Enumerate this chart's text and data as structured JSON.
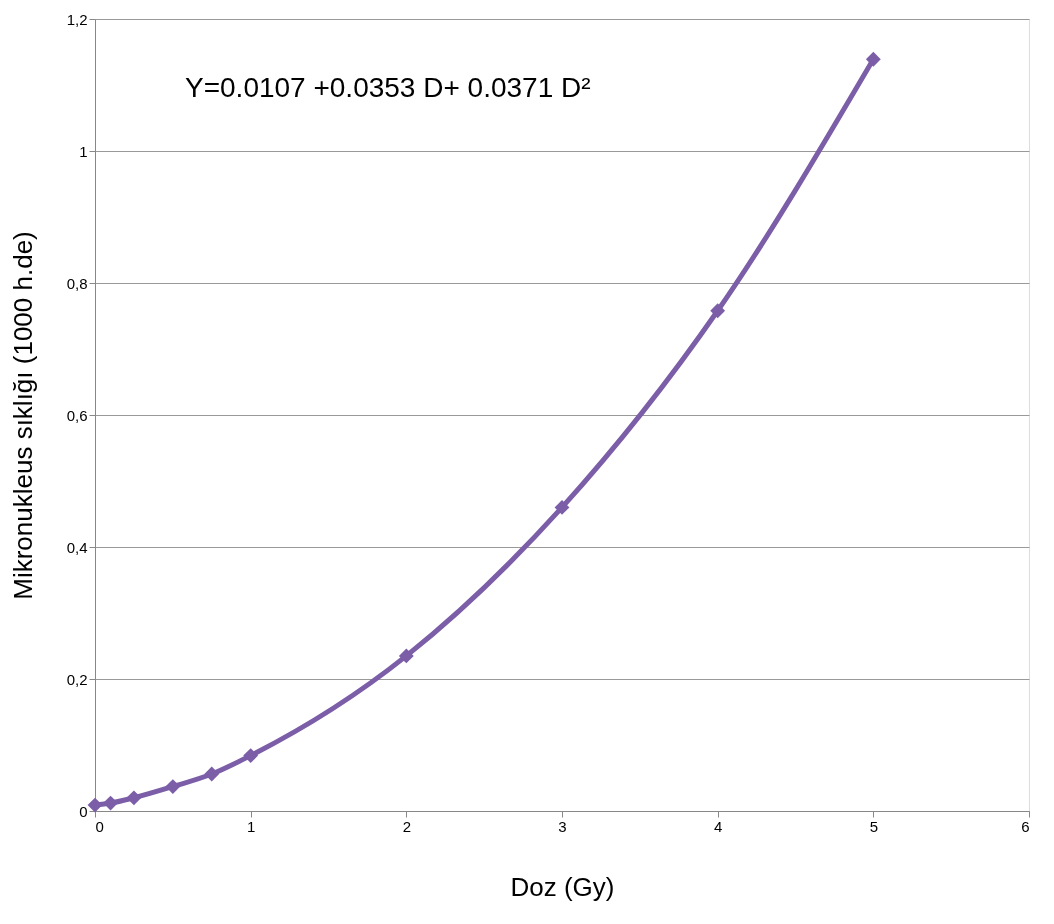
{
  "chart_data": {
    "type": "line",
    "xlabel": "Doz (Gy)",
    "ylabel": "Mikronukleus sıklığı (1000 h.de)",
    "annotations": [
      "Y=0.0107 +0.0353 D+ 0.0371 D²"
    ],
    "x": [
      0,
      0.1,
      0.25,
      0.5,
      0.75,
      1,
      2,
      3,
      4,
      5
    ],
    "series": [
      {
        "color": "#7b5ea7",
        "values": [
          0.009,
          0.012,
          0.02,
          0.037,
          0.056,
          0.084,
          0.235,
          0.46,
          0.758,
          1.139
        ]
      }
    ],
    "xlim": [
      0,
      6
    ],
    "xticks": [
      0,
      1,
      2,
      3,
      4,
      5,
      6
    ],
    "ylim": [
      0,
      1.2
    ],
    "yticks": [
      0,
      {
        "value": 0.2,
        "label": "0,2"
      },
      {
        "value": 0.4,
        "label": "0,4"
      },
      {
        "value": 0.6,
        "label": "0,6"
      },
      {
        "value": 0.8,
        "label": "0,8"
      },
      1,
      {
        "value": 1.2,
        "label": "1,2"
      }
    ],
    "grid": "y",
    "marker": "diamond",
    "line_style": "solid"
  }
}
